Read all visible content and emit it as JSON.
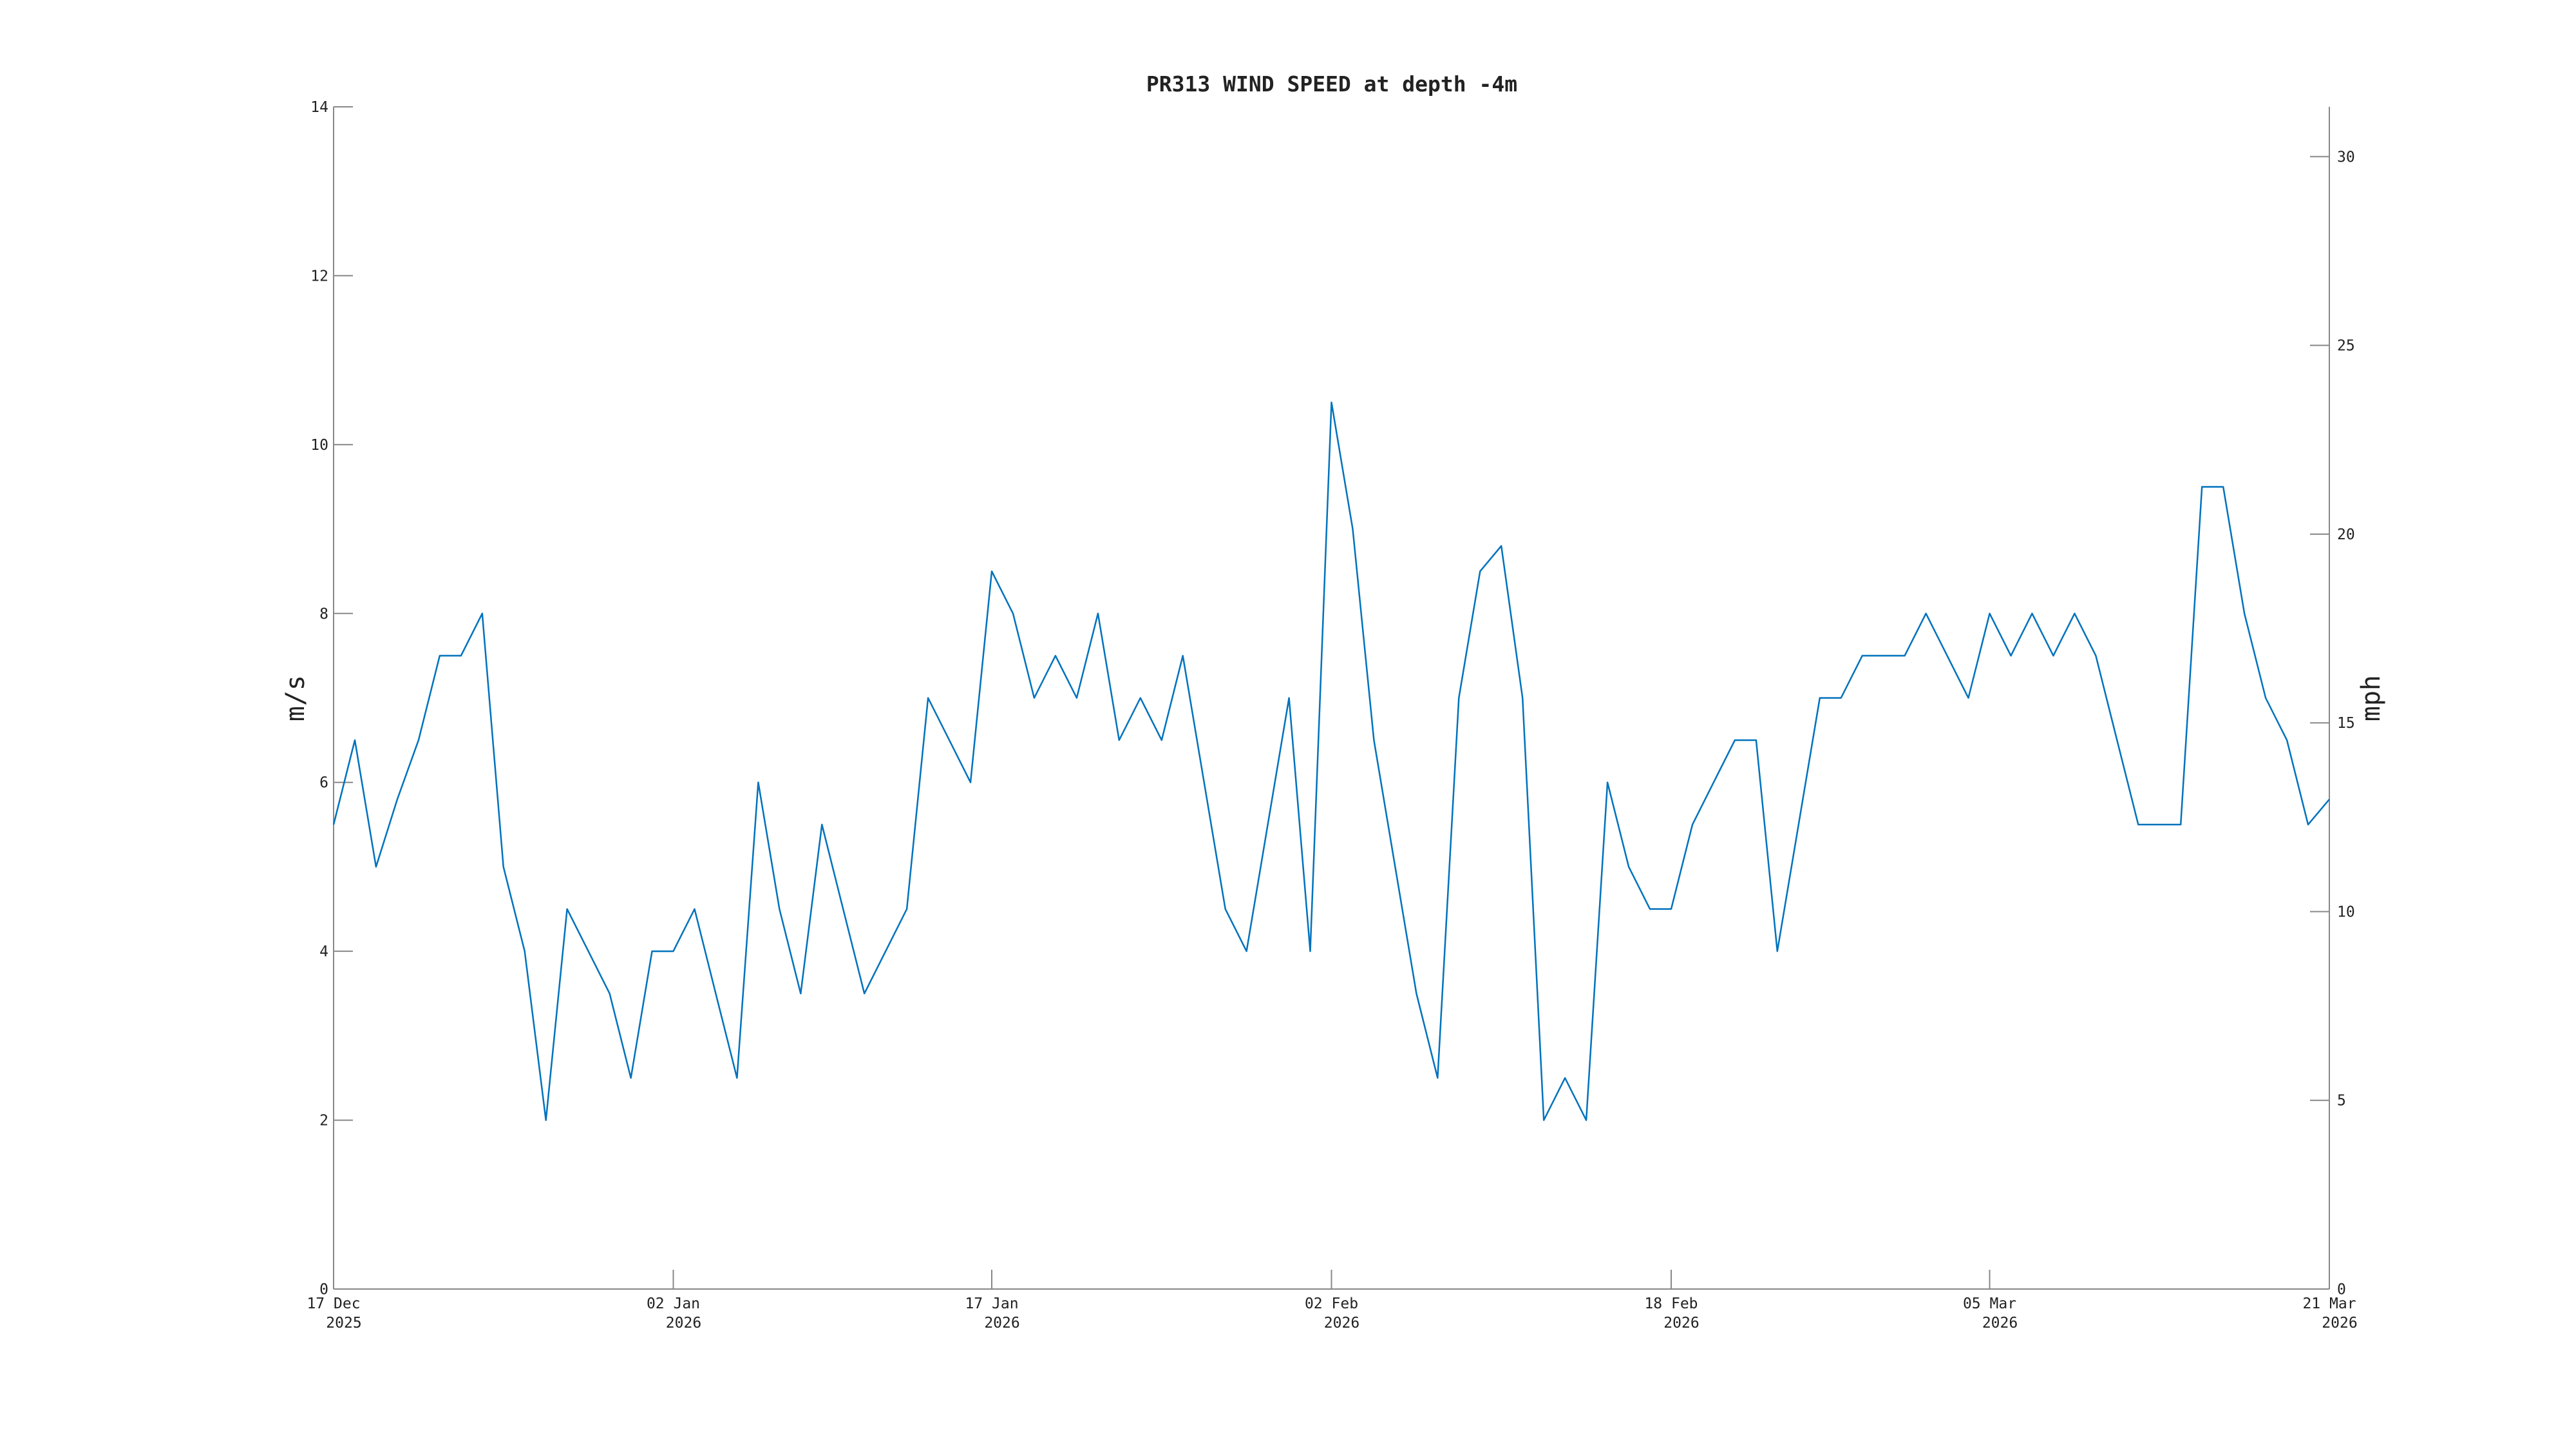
{
  "chart_data": {
    "type": "line",
    "title": "PR313 WIND SPEED at depth -4m",
    "ylabel": "m/s",
    "y2label": "mph",
    "color": "#0072bd",
    "x": [
      "2025-12-17",
      "2025-12-18",
      "2025-12-19",
      "2025-12-20",
      "2025-12-21",
      "2025-12-22",
      "2025-12-23",
      "2025-12-24",
      "2025-12-25",
      "2025-12-26",
      "2025-12-27",
      "2025-12-28",
      "2025-12-29",
      "2025-12-30",
      "2025-12-31",
      "2026-01-01",
      "2026-01-02",
      "2026-01-03",
      "2026-01-04",
      "2026-01-05",
      "2026-01-06",
      "2026-01-07",
      "2026-01-08",
      "2026-01-09",
      "2026-01-10",
      "2026-01-11",
      "2026-01-12",
      "2026-01-13",
      "2026-01-14",
      "2026-01-15",
      "2026-01-16",
      "2026-01-17",
      "2026-01-18",
      "2026-01-19",
      "2026-01-20",
      "2026-01-21",
      "2026-01-22",
      "2026-01-23",
      "2026-01-24",
      "2026-01-25",
      "2026-01-26",
      "2026-01-27",
      "2026-01-28",
      "2026-01-29",
      "2026-01-30",
      "2026-01-31",
      "2026-02-01",
      "2026-02-02",
      "2026-02-03",
      "2026-02-04",
      "2026-02-05",
      "2026-02-06",
      "2026-02-07",
      "2026-02-08",
      "2026-02-09",
      "2026-02-10",
      "2026-02-11",
      "2026-02-12",
      "2026-02-13",
      "2026-02-14",
      "2026-02-15",
      "2026-02-16",
      "2026-02-17",
      "2026-02-18",
      "2026-02-19",
      "2026-02-20",
      "2026-02-21",
      "2026-02-22",
      "2026-02-23",
      "2026-02-24",
      "2026-02-25",
      "2026-02-26",
      "2026-02-27",
      "2026-02-28",
      "2026-03-01",
      "2026-03-02",
      "2026-03-03",
      "2026-03-04",
      "2026-03-05",
      "2026-03-06",
      "2026-03-07",
      "2026-03-08",
      "2026-03-09",
      "2026-03-10",
      "2026-03-11",
      "2026-03-12",
      "2026-03-13",
      "2026-03-14",
      "2026-03-15",
      "2026-03-16",
      "2026-03-17",
      "2026-03-18",
      "2026-03-19",
      "2026-03-20",
      "2026-03-21"
    ],
    "values": [
      5.5,
      6.5,
      5.0,
      5.8,
      6.5,
      7.5,
      7.5,
      8.0,
      5.0,
      4.0,
      2.0,
      4.5,
      4.0,
      3.5,
      2.5,
      4.0,
      4.0,
      4.5,
      3.5,
      2.5,
      6.0,
      4.5,
      3.5,
      5.5,
      4.5,
      3.5,
      4.0,
      4.5,
      7.0,
      6.5,
      6.0,
      8.5,
      8.0,
      7.0,
      7.5,
      7.0,
      8.0,
      6.5,
      7.0,
      6.5,
      7.5,
      6.0,
      4.5,
      4.0,
      5.5,
      7.0,
      4.0,
      10.5,
      9.0,
      6.5,
      5.0,
      3.5,
      2.5,
      7.0,
      8.5,
      8.8,
      7.0,
      2.0,
      2.5,
      2.0,
      6.0,
      5.0,
      4.5,
      4.5,
      5.5,
      6.0,
      6.5,
      6.5,
      4.0,
      5.5,
      7.0,
      7.0,
      7.5,
      7.5,
      7.5,
      8.0,
      7.5,
      7.0,
      8.0,
      7.5,
      8.0,
      7.5,
      8.0,
      7.5,
      6.5,
      5.5,
      5.5,
      5.5,
      9.5,
      9.5,
      8.0,
      7.0,
      6.5,
      5.5,
      5.8
    ],
    "xlim": [
      "2025-12-17",
      "2026-03-21"
    ],
    "xticks": [
      {
        "value": "2025-12-17",
        "label": [
          "17 Dec",
          "2025"
        ]
      },
      {
        "value": "2026-01-02",
        "label": [
          "02 Jan",
          "2026"
        ]
      },
      {
        "value": "2026-01-17",
        "label": [
          "17 Jan",
          "2026"
        ]
      },
      {
        "value": "2026-02-02",
        "label": [
          "02 Feb",
          "2026"
        ]
      },
      {
        "value": "2026-02-18",
        "label": [
          "18 Feb",
          "2026"
        ]
      },
      {
        "value": "2026-03-05",
        "label": [
          "05 Mar",
          "2026"
        ]
      },
      {
        "value": "2026-03-21",
        "label": [
          "21 Mar",
          "2026"
        ]
      }
    ],
    "ylim": [
      0,
      14
    ],
    "yticks": [
      0,
      2,
      4,
      6,
      8,
      10,
      12,
      14
    ],
    "y2lim": [
      0,
      31.32
    ],
    "y2ticks": [
      0,
      5,
      10,
      15,
      20,
      25,
      30
    ]
  }
}
